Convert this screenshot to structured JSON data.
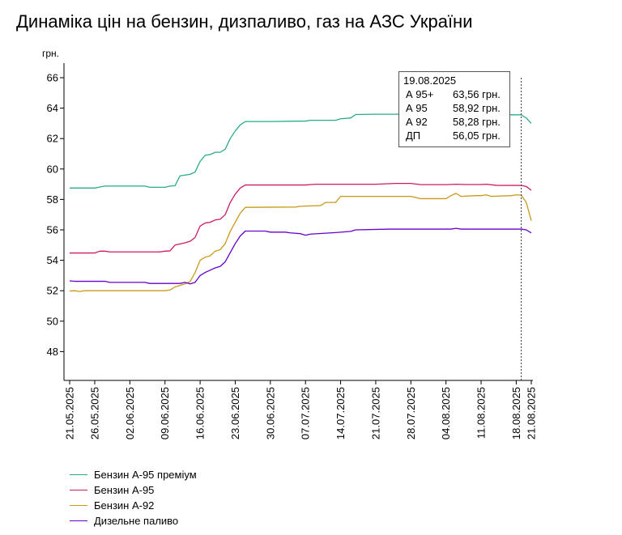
{
  "title": "Динаміка цін на бензин, дизпаливо, газ на АЗС України",
  "chart_data": {
    "type": "line",
    "title": "Динаміка цін на бензин, дизпаливо, газ на АЗС України",
    "ylabel": "грн.",
    "xlabel": "",
    "ylim": [
      46,
      67
    ],
    "yticks": [
      "66",
      "64",
      "62",
      "60",
      "58",
      "56",
      "54",
      "52",
      "50",
      "48"
    ],
    "xlim": [
      "2025-05-21",
      "2025-08-21"
    ],
    "xtick_labels": [
      "21.05.2025",
      "26.05.2025",
      "02.06.2025",
      "09.06.2025",
      "16.06.2025",
      "23.06.2025",
      "30.06.2025",
      "07.07.2025",
      "14.07.2025",
      "21.07.2025",
      "28.07.2025",
      "04.08.2025",
      "11.08.2025",
      "18.08.2025",
      "21.08.2025"
    ],
    "grid": false,
    "legend_position": "bottom-left",
    "series": [
      {
        "name": "Бензин А-95 преміум",
        "color": "#2aaa8a",
        "points": [
          [
            "2025-05-21",
            58.75
          ],
          [
            "2025-05-26",
            58.75
          ],
          [
            "2025-05-28",
            58.88
          ],
          [
            "2025-06-02",
            58.88
          ],
          [
            "2025-06-05",
            58.88
          ],
          [
            "2025-06-06",
            58.8
          ],
          [
            "2025-06-09",
            58.8
          ],
          [
            "2025-06-10",
            58.88
          ],
          [
            "2025-06-11",
            58.9
          ],
          [
            "2025-06-12",
            59.55
          ],
          [
            "2025-06-14",
            59.65
          ],
          [
            "2025-06-15",
            59.8
          ],
          [
            "2025-06-16",
            60.5
          ],
          [
            "2025-06-17",
            60.9
          ],
          [
            "2025-06-18",
            60.95
          ],
          [
            "2025-06-19",
            61.1
          ],
          [
            "2025-06-20",
            61.1
          ],
          [
            "2025-06-21",
            61.3
          ],
          [
            "2025-06-22",
            62.0
          ],
          [
            "2025-06-23",
            62.5
          ],
          [
            "2025-06-24",
            62.9
          ],
          [
            "2025-06-25",
            63.12
          ],
          [
            "2025-06-30",
            63.12
          ],
          [
            "2025-07-07",
            63.15
          ],
          [
            "2025-07-08",
            63.2
          ],
          [
            "2025-07-13",
            63.2
          ],
          [
            "2025-07-14",
            63.3
          ],
          [
            "2025-07-16",
            63.35
          ],
          [
            "2025-07-17",
            63.58
          ],
          [
            "2025-07-21",
            63.6
          ],
          [
            "2025-08-04",
            63.6
          ],
          [
            "2025-08-08",
            63.58
          ],
          [
            "2025-08-19",
            63.56
          ],
          [
            "2025-08-20",
            63.35
          ],
          [
            "2025-08-21",
            63.0
          ]
        ]
      },
      {
        "name": "Бензин А-95",
        "color": "#cc1a66",
        "points": [
          [
            "2025-05-21",
            54.48
          ],
          [
            "2025-05-26",
            54.48
          ],
          [
            "2025-05-27",
            54.6
          ],
          [
            "2025-05-28",
            54.6
          ],
          [
            "2025-05-29",
            54.55
          ],
          [
            "2025-06-08",
            54.55
          ],
          [
            "2025-06-09",
            54.6
          ],
          [
            "2025-06-10",
            54.62
          ],
          [
            "2025-06-11",
            55.0
          ],
          [
            "2025-06-13",
            55.15
          ],
          [
            "2025-06-14",
            55.25
          ],
          [
            "2025-06-15",
            55.5
          ],
          [
            "2025-06-16",
            56.25
          ],
          [
            "2025-06-17",
            56.45
          ],
          [
            "2025-06-18",
            56.5
          ],
          [
            "2025-06-19",
            56.65
          ],
          [
            "2025-06-20",
            56.7
          ],
          [
            "2025-06-21",
            57.0
          ],
          [
            "2025-06-22",
            57.8
          ],
          [
            "2025-06-23",
            58.35
          ],
          [
            "2025-06-24",
            58.75
          ],
          [
            "2025-06-25",
            58.95
          ],
          [
            "2025-07-07",
            58.95
          ],
          [
            "2025-07-09",
            59.0
          ],
          [
            "2025-07-21",
            59.0
          ],
          [
            "2025-07-25",
            59.05
          ],
          [
            "2025-07-28",
            59.05
          ],
          [
            "2025-07-30",
            58.97
          ],
          [
            "2025-08-04",
            58.97
          ],
          [
            "2025-08-06",
            59.0
          ],
          [
            "2025-08-08",
            58.98
          ],
          [
            "2025-08-11",
            58.98
          ],
          [
            "2025-08-12",
            59.0
          ],
          [
            "2025-08-14",
            58.93
          ],
          [
            "2025-08-19",
            58.92
          ],
          [
            "2025-08-20",
            58.85
          ],
          [
            "2025-08-21",
            58.6
          ]
        ]
      },
      {
        "name": "Бензин А-92",
        "color": "#c99a1a",
        "points": [
          [
            "2025-05-21",
            51.98
          ],
          [
            "2025-05-22",
            52.0
          ],
          [
            "2025-05-23",
            51.95
          ],
          [
            "2025-05-24",
            52.0
          ],
          [
            "2025-06-09",
            52.0
          ],
          [
            "2025-06-10",
            52.05
          ],
          [
            "2025-06-11",
            52.25
          ],
          [
            "2025-06-12",
            52.35
          ],
          [
            "2025-06-13",
            52.45
          ],
          [
            "2025-06-14",
            52.6
          ],
          [
            "2025-06-15",
            53.2
          ],
          [
            "2025-06-16",
            54.0
          ],
          [
            "2025-06-17",
            54.2
          ],
          [
            "2025-06-18",
            54.3
          ],
          [
            "2025-06-19",
            54.6
          ],
          [
            "2025-06-20",
            54.7
          ],
          [
            "2025-06-21",
            55.1
          ],
          [
            "2025-06-22",
            55.9
          ],
          [
            "2025-06-23",
            56.5
          ],
          [
            "2025-06-24",
            57.1
          ],
          [
            "2025-06-25",
            57.48
          ],
          [
            "2025-07-05",
            57.5
          ],
          [
            "2025-07-06",
            57.55
          ],
          [
            "2025-07-10",
            57.6
          ],
          [
            "2025-07-11",
            57.8
          ],
          [
            "2025-07-13",
            57.8
          ],
          [
            "2025-07-14",
            58.2
          ],
          [
            "2025-07-28",
            58.2
          ],
          [
            "2025-07-30",
            58.05
          ],
          [
            "2025-08-04",
            58.05
          ],
          [
            "2025-08-05",
            58.25
          ],
          [
            "2025-08-06",
            58.4
          ],
          [
            "2025-08-07",
            58.2
          ],
          [
            "2025-08-10",
            58.25
          ],
          [
            "2025-08-11",
            58.25
          ],
          [
            "2025-08-12",
            58.3
          ],
          [
            "2025-08-13",
            58.2
          ],
          [
            "2025-08-17",
            58.25
          ],
          [
            "2025-08-18",
            58.3
          ],
          [
            "2025-08-19",
            58.28
          ],
          [
            "2025-08-20",
            57.8
          ],
          [
            "2025-08-21",
            56.6
          ]
        ]
      },
      {
        "name": "Дизельне паливо",
        "color": "#6600cc",
        "points": [
          [
            "2025-05-21",
            52.65
          ],
          [
            "2025-05-22",
            52.62
          ],
          [
            "2025-05-28",
            52.62
          ],
          [
            "2025-05-29",
            52.55
          ],
          [
            "2025-06-05",
            52.55
          ],
          [
            "2025-06-06",
            52.48
          ],
          [
            "2025-06-12",
            52.48
          ],
          [
            "2025-06-13",
            52.55
          ],
          [
            "2025-06-14",
            52.45
          ],
          [
            "2025-06-15",
            52.55
          ],
          [
            "2025-06-16",
            53.0
          ],
          [
            "2025-06-17",
            53.2
          ],
          [
            "2025-06-18",
            53.35
          ],
          [
            "2025-06-19",
            53.5
          ],
          [
            "2025-06-20",
            53.6
          ],
          [
            "2025-06-21",
            53.9
          ],
          [
            "2025-06-22",
            54.5
          ],
          [
            "2025-06-23",
            55.1
          ],
          [
            "2025-06-24",
            55.6
          ],
          [
            "2025-06-25",
            55.92
          ],
          [
            "2025-06-29",
            55.92
          ],
          [
            "2025-06-30",
            55.85
          ],
          [
            "2025-07-03",
            55.85
          ],
          [
            "2025-07-04",
            55.8
          ],
          [
            "2025-07-06",
            55.75
          ],
          [
            "2025-07-07",
            55.65
          ],
          [
            "2025-07-08",
            55.72
          ],
          [
            "2025-07-11",
            55.78
          ],
          [
            "2025-07-13",
            55.82
          ],
          [
            "2025-07-16",
            55.9
          ],
          [
            "2025-07-17",
            56.0
          ],
          [
            "2025-07-24",
            56.05
          ],
          [
            "2025-08-05",
            56.05
          ],
          [
            "2025-08-06",
            56.1
          ],
          [
            "2025-08-07",
            56.05
          ],
          [
            "2025-08-19",
            56.05
          ],
          [
            "2025-08-20",
            56.0
          ],
          [
            "2025-08-21",
            55.8
          ]
        ]
      }
    ],
    "marker_date": "2025-08-19",
    "tooltip": {
      "date": "19.08.2025",
      "rows": [
        {
          "label": "А 95+",
          "value": "63,56 грн."
        },
        {
          "label": "А 95",
          "value": "58,92 грн."
        },
        {
          "label": "А 92",
          "value": "58,28 грн."
        },
        {
          "label": "ДП",
          "value": "56,05 грн."
        }
      ]
    }
  }
}
